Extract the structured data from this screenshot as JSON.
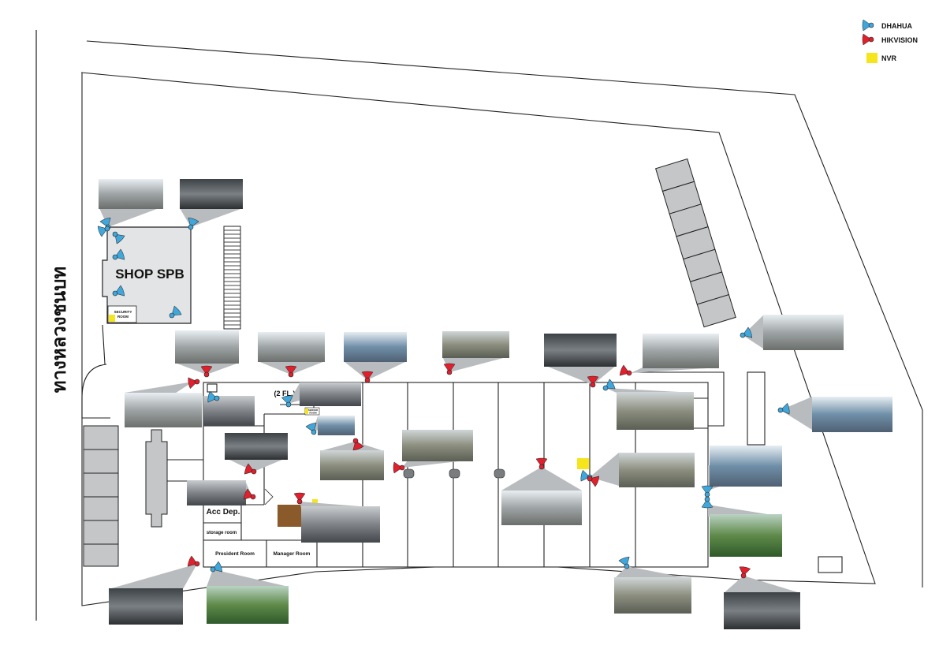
{
  "road_label": "ทางหลวงชนบท",
  "legend": [
    {
      "key": "dhahua",
      "label": "DHAHUA",
      "color": "#3fa7dc"
    },
    {
      "key": "hikvision",
      "label": "HIKVISION",
      "color": "#e0202c"
    },
    {
      "key": "nvr",
      "label": "NVR",
      "color": "#f5e51a"
    }
  ],
  "rooms": {
    "shop": "SHOP SPB",
    "security_room_line1": "SECURITY",
    "security_room_line2": "ROOM",
    "second_floor": "(2 FL.)",
    "server_room_line1": "SERVER",
    "server_room_line2": "ROOM",
    "acc_dep": "Acc Dep.",
    "storage": "storage room",
    "president": "President Room",
    "manager": "Manager Room"
  },
  "colors": {
    "building": "#e3e4e5",
    "outline": "#222222",
    "camera_view_cone": "#b9bcbe",
    "parking": "#c4c6c8",
    "office_door": "#8a5a2b"
  }
}
